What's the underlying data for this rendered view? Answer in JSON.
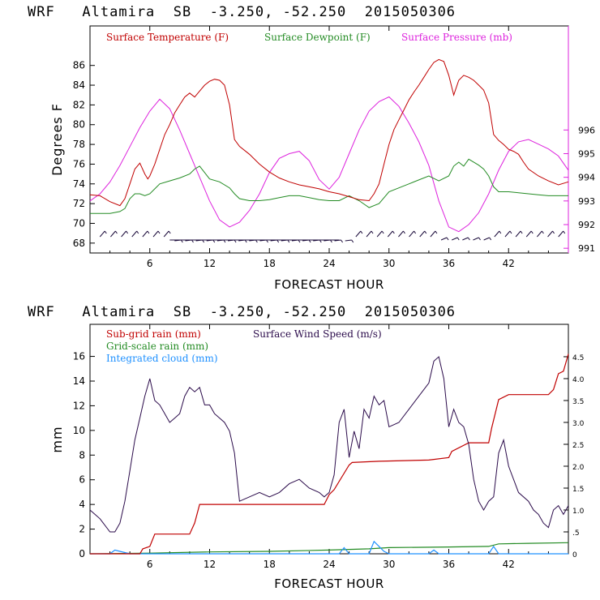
{
  "chart_data": [
    {
      "type": "line",
      "title": "WRF   Altamira  SB  -3.250, -52.250  2015050306",
      "xlabel": "FORECAST HOUR",
      "ylabel": "Degrees F",
      "xlim": [
        0,
        48
      ],
      "ylim": [
        67,
        90
      ],
      "y2lim": [
        990.8,
        1000.4
      ],
      "xticks": [
        "6",
        "12",
        "18",
        "24",
        "30",
        "36",
        "42"
      ],
      "yticks": [
        "68",
        "70",
        "72",
        "74",
        "76",
        "78",
        "80",
        "82",
        "84",
        "86"
      ],
      "y2ticks": [
        "991",
        "992",
        "993",
        "994",
        "995",
        "996"
      ],
      "colors": {
        "temperature": "#c00000",
        "dewpoint": "#238b23",
        "pressure": "#dd22dd",
        "wind": "#000040",
        "axis": "#dd22dd"
      },
      "series": [
        {
          "name": "Surface Temperature (F)",
          "axis": "left",
          "x": [
            0,
            1,
            2,
            3,
            3.5,
            4,
            4.5,
            5,
            5.5,
            5.8,
            6,
            6.5,
            7,
            7.5,
            8,
            8.5,
            9,
            9.5,
            10,
            10.5,
            11,
            11.5,
            12,
            12.5,
            13,
            13.5,
            14,
            14.5,
            15,
            16,
            17,
            18,
            19,
            20,
            21,
            22,
            23,
            24,
            25,
            26,
            27,
            28,
            28.5,
            29,
            29.5,
            30,
            30.5,
            31,
            31.5,
            32,
            32.5,
            33,
            33.5,
            34,
            34.5,
            35,
            35.5,
            36,
            36.5,
            37,
            37.5,
            38,
            38.5,
            39,
            39.5,
            40,
            40.5,
            41,
            41.5,
            42,
            42.5,
            43,
            43.5,
            44,
            45,
            46,
            47,
            48
          ],
          "values": [
            72.9,
            72.8,
            72.2,
            71.8,
            72.5,
            74,
            75.5,
            76.1,
            75,
            74.5,
            74.8,
            76,
            77.5,
            79,
            80,
            81.2,
            82,
            82.8,
            83.2,
            82.8,
            83.4,
            84,
            84.4,
            84.6,
            84.5,
            84,
            82,
            78.5,
            77.8,
            77,
            76,
            75.2,
            74.6,
            74.2,
            73.9,
            73.7,
            73.5,
            73.2,
            73,
            72.7,
            72.4,
            72.3,
            73,
            74,
            76,
            78,
            79.5,
            80.5,
            81.5,
            82.5,
            83.3,
            84,
            84.8,
            85.6,
            86.3,
            86.6,
            86.4,
            85,
            83,
            84.5,
            85,
            84.8,
            84.5,
            84,
            83.5,
            82.2,
            79,
            78.4,
            78,
            77.5,
            77.3,
            77,
            76.2,
            75.5,
            74.8,
            74.3,
            73.9,
            74.2
          ]
        },
        {
          "name": "Surface Dewpoint (F)",
          "axis": "left",
          "x": [
            0,
            1,
            2,
            3,
            3.5,
            4,
            4.5,
            5,
            5.5,
            6,
            6.5,
            7,
            8,
            9,
            10,
            10.5,
            11,
            12,
            13,
            14,
            14.5,
            15,
            16,
            17,
            18,
            19,
            20,
            21,
            22,
            23,
            24,
            25,
            26,
            27,
            28,
            29,
            30,
            31,
            32,
            33,
            34,
            35,
            36,
            36.5,
            37,
            37.5,
            38,
            39,
            39.5,
            40,
            40.5,
            41,
            42,
            43,
            44,
            45,
            46,
            47,
            48
          ],
          "values": [
            71,
            71,
            71,
            71.2,
            71.5,
            72.5,
            73,
            73,
            72.8,
            73,
            73.5,
            74,
            74.3,
            74.6,
            75,
            75.5,
            75.8,
            74.5,
            74.2,
            73.6,
            73,
            72.5,
            72.3,
            72.3,
            72.4,
            72.6,
            72.8,
            72.8,
            72.6,
            72.4,
            72.3,
            72.3,
            72.8,
            72.3,
            71.6,
            72,
            73.2,
            73.6,
            74,
            74.4,
            74.8,
            74.3,
            74.8,
            75.8,
            76.2,
            75.8,
            76.5,
            75.9,
            75.5,
            74.8,
            73.7,
            73.2,
            73.2,
            73.1,
            73,
            72.9,
            72.8,
            72.8,
            72.8
          ]
        },
        {
          "name": "Surface Pressure (mb)",
          "axis": "right",
          "x": [
            0,
            1,
            2,
            3,
            4,
            5,
            6,
            7,
            8,
            9,
            10,
            11,
            12,
            13,
            14,
            15,
            16,
            17,
            18,
            19,
            20,
            21,
            22,
            23,
            24,
            25,
            26,
            27,
            28,
            29,
            30,
            31,
            32,
            33,
            34,
            35,
            36,
            37,
            38,
            39,
            40,
            41,
            42,
            43,
            44,
            45,
            46,
            47,
            48
          ],
          "values": [
            993,
            993.3,
            993.8,
            994.5,
            995.3,
            996.1,
            996.8,
            997.3,
            996.9,
            996,
            995,
            994,
            993,
            992.2,
            991.9,
            992.1,
            992.6,
            993.3,
            994.2,
            994.8,
            995,
            995.1,
            994.7,
            993.9,
            993.5,
            994,
            995,
            996,
            996.8,
            997.2,
            997.4,
            997,
            996.3,
            995.5,
            994.5,
            993,
            991.9,
            991.7,
            992,
            992.5,
            993.3,
            994.3,
            995.1,
            995.5,
            995.6,
            995.4,
            995.2,
            994.9,
            994.3
          ]
        }
      ],
      "wind_barbs": {
        "count": 44,
        "label": "wind barbs"
      }
    },
    {
      "type": "line",
      "title": "WRF   Altamira  SB  -3.250, -52.250  2015050306",
      "xlabel": "FORECAST HOUR",
      "ylabel": "mm",
      "xlim": [
        0,
        48
      ],
      "ylim": [
        0,
        18.6
      ],
      "y2lim": [
        0,
        5.24
      ],
      "xticks": [
        "6",
        "12",
        "18",
        "24",
        "30",
        "36",
        "42"
      ],
      "yticks": [
        "0",
        "2",
        "4",
        "6",
        "8",
        "10",
        "12",
        "14",
        "16"
      ],
      "y2ticks": [
        "0",
        ".5",
        "1.0",
        "1.5",
        "2.0",
        "2.5",
        "3.0",
        "3.5",
        "4.0",
        "4.5"
      ],
      "colors": {
        "subgrid": "#c00000",
        "gridscale": "#238b23",
        "cloud": "#1e90ff",
        "wind": "#2a0a4a"
      },
      "series": [
        {
          "name": "Sub-grid rain (mm)",
          "axis": "left",
          "x": [
            0,
            5,
            5.3,
            6,
            6.5,
            10,
            10.5,
            11,
            13,
            16,
            22,
            23.5,
            24,
            24.5,
            26,
            26.3,
            29,
            34,
            36,
            36.3,
            38,
            40,
            40.3,
            41,
            42,
            46,
            46.5,
            47,
            47.5,
            48
          ],
          "values": [
            0,
            0,
            0.4,
            0.6,
            1.6,
            1.6,
            2.5,
            4,
            4,
            4,
            4,
            4,
            4.8,
            5.2,
            7.2,
            7.4,
            7.5,
            7.6,
            7.8,
            8.3,
            9,
            9,
            10.2,
            12.5,
            12.9,
            12.9,
            13.3,
            14.6,
            14.8,
            16.2
          ]
        },
        {
          "name": "Grid-scale rain (mm)",
          "axis": "left",
          "x": [
            0,
            6,
            12,
            18,
            24,
            28,
            30,
            36,
            40,
            41,
            44,
            48
          ],
          "values": [
            0,
            0.05,
            0.15,
            0.2,
            0.3,
            0.4,
            0.5,
            0.55,
            0.6,
            0.8,
            0.85,
            0.9
          ]
        },
        {
          "name": "Integrated cloud (mm)",
          "axis": "left",
          "x": [
            0,
            2,
            2.5,
            3,
            4,
            6,
            24,
            25,
            25.5,
            26,
            28,
            28.5,
            29,
            29.5,
            30,
            34,
            34.5,
            35,
            40,
            40.5,
            41,
            48
          ],
          "values": [
            0,
            0,
            0.3,
            0.2,
            0,
            0,
            0,
            0,
            0.5,
            0,
            0,
            1,
            0.6,
            0.2,
            0,
            0,
            0.3,
            0,
            0,
            0.6,
            0,
            0
          ]
        },
        {
          "name": "Surface Wind Speed (m/s)",
          "axis": "right",
          "x": [
            0,
            1,
            2,
            2.5,
            3,
            3.5,
            4,
            4.5,
            5,
            5.5,
            6,
            6.5,
            7,
            7.5,
            8,
            8.5,
            9,
            9.5,
            10,
            10.5,
            11,
            11.5,
            12,
            12.5,
            13,
            13.5,
            14,
            14.5,
            15,
            16,
            17,
            18,
            19,
            20,
            21,
            22,
            23,
            23.5,
            24,
            24.5,
            25,
            25.5,
            26,
            26.5,
            27,
            27.5,
            28,
            28.5,
            29,
            29.5,
            30,
            31,
            32,
            33,
            34,
            34.5,
            35,
            35.5,
            36,
            36.5,
            37,
            37.5,
            38,
            38.5,
            39,
            39.5,
            40,
            40.5,
            41,
            41.5,
            42,
            43,
            44,
            44.5,
            45,
            45.5,
            46,
            46.5,
            47,
            47.5,
            48
          ],
          "values": [
            1.0,
            0.8,
            0.5,
            0.5,
            0.7,
            1.2,
            1.9,
            2.6,
            3.1,
            3.6,
            4.0,
            3.5,
            3.4,
            3.2,
            3.0,
            3.1,
            3.2,
            3.6,
            3.8,
            3.7,
            3.8,
            3.4,
            3.4,
            3.2,
            3.1,
            3.0,
            2.8,
            2.3,
            1.2,
            1.3,
            1.4,
            1.3,
            1.4,
            1.6,
            1.7,
            1.5,
            1.4,
            1.3,
            1.4,
            1.8,
            3.0,
            3.3,
            2.2,
            2.8,
            2.4,
            3.3,
            3.1,
            3.6,
            3.4,
            3.5,
            2.9,
            3.0,
            3.3,
            3.6,
            3.9,
            4.4,
            4.5,
            4.0,
            2.9,
            3.3,
            3.0,
            2.9,
            2.5,
            1.7,
            1.2,
            1.0,
            1.2,
            1.3,
            2.3,
            2.6,
            2.0,
            1.4,
            1.2,
            1.0,
            0.9,
            0.7,
            0.6,
            1.0,
            1.1,
            0.9,
            1.1
          ]
        }
      ]
    }
  ]
}
